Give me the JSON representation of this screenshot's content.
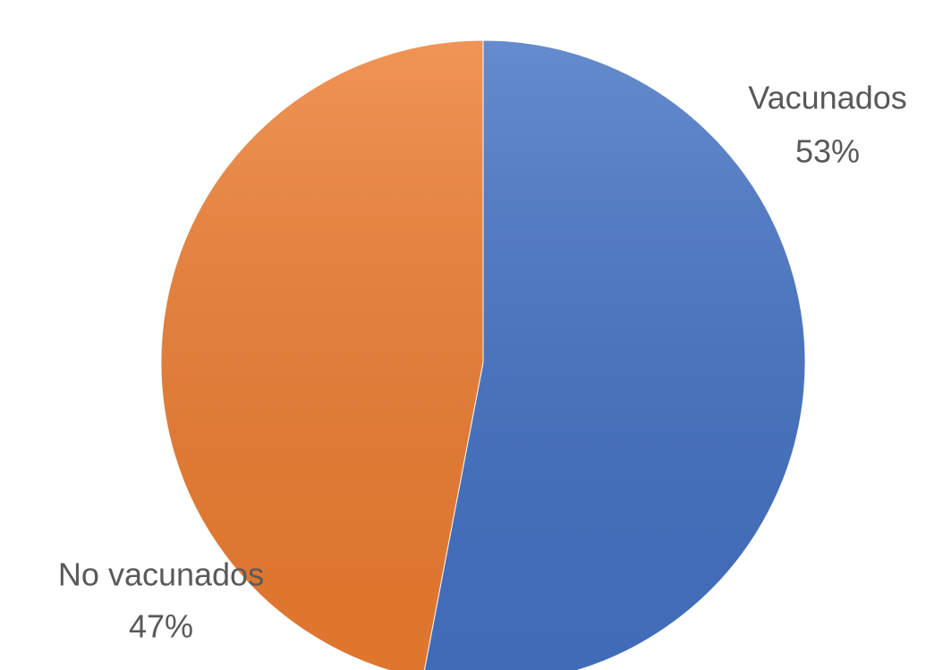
{
  "chart_data": {
    "type": "pie",
    "categories": [
      "Vacunados",
      "No vacunados"
    ],
    "values": [
      53,
      47
    ],
    "value_labels": [
      "53%",
      "47%"
    ],
    "colors": [
      "#4472c4",
      "#ed7d31"
    ]
  }
}
